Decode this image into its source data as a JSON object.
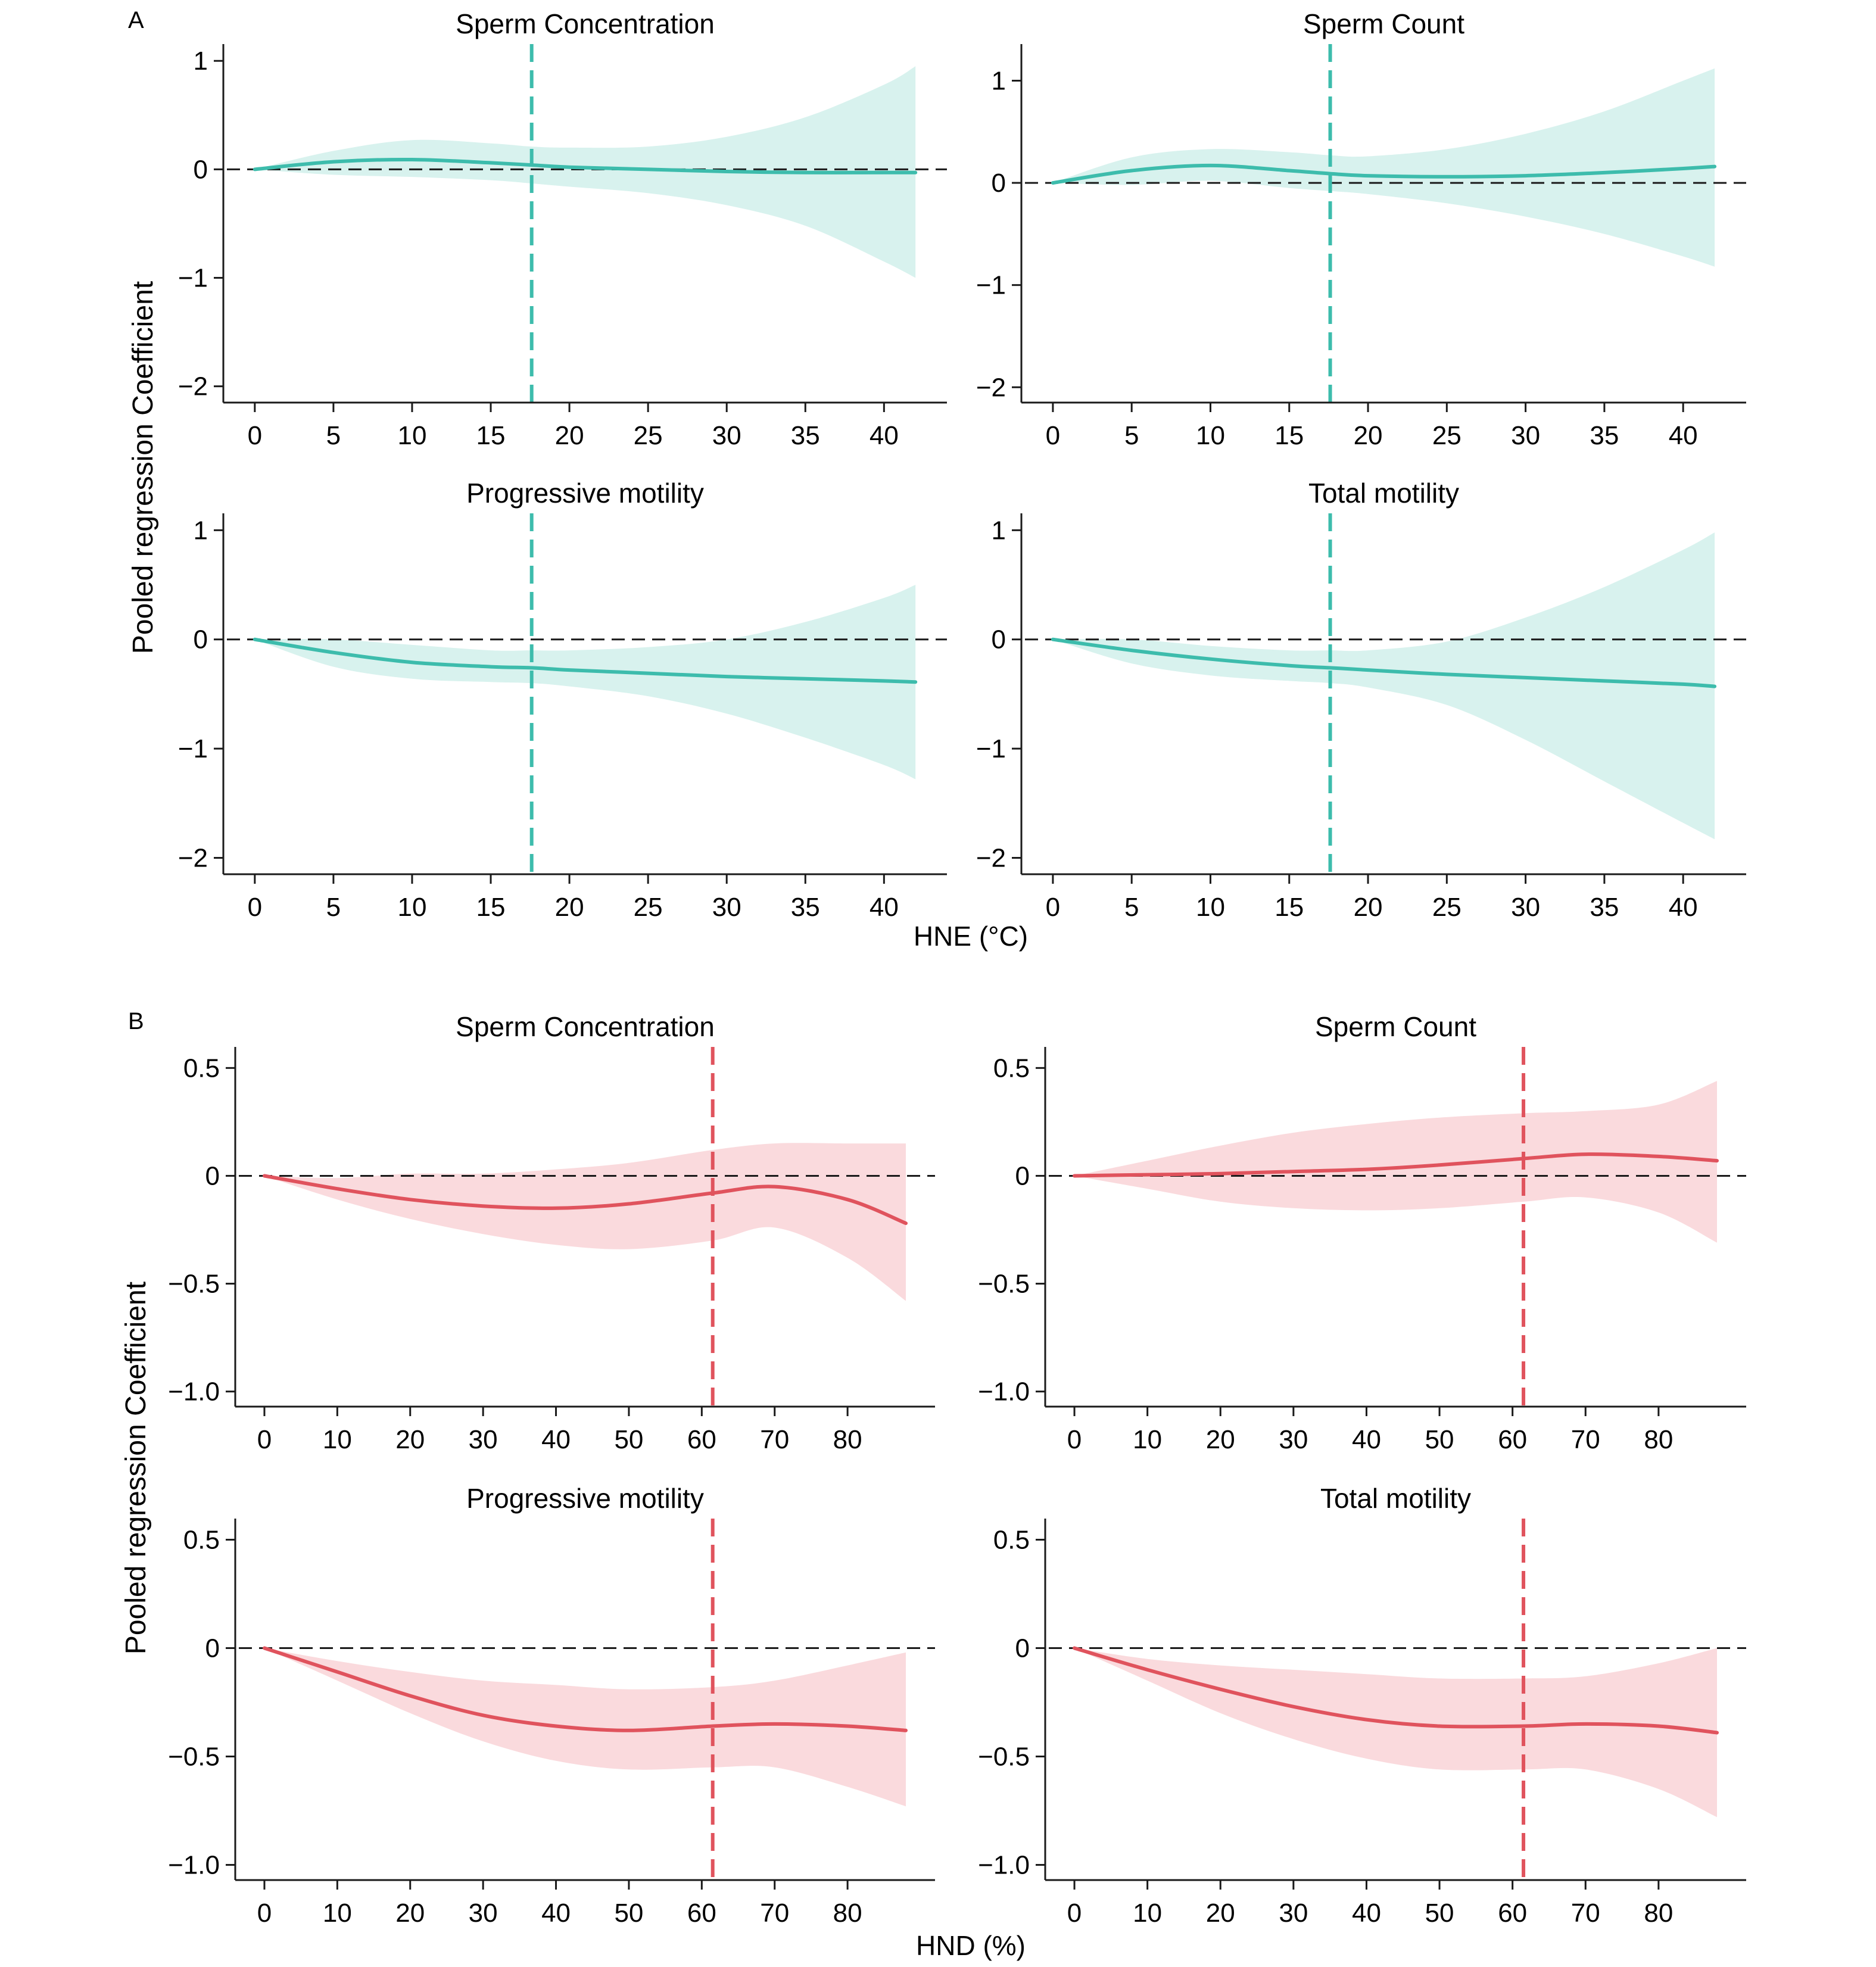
{
  "figure": {
    "panel_a_label": "A",
    "panel_b_label": "B",
    "ylabel": "Pooled regression Coefficient",
    "xlabel_a": "HNE (°C)",
    "xlabel_b": "HND (%)",
    "colors": {
      "a_line": "#3dbcac",
      "a_band": "#d8f2ee",
      "b_line": "#e0535d",
      "b_band": "#fadadd",
      "ref_line": "#1a1a1a"
    }
  },
  "chart_data": [
    {
      "panel": "A",
      "type": "line",
      "title": "Sperm Concentration",
      "xlim": [
        -2,
        44
      ],
      "ylim": [
        -2.15,
        1.1
      ],
      "xticks": [
        0,
        5,
        10,
        15,
        20,
        25,
        30,
        35,
        40
      ],
      "yticks": [
        1,
        0,
        -1,
        -2
      ],
      "ytick_labels": [
        "1",
        "0",
        "−1",
        "−2"
      ],
      "threshold_x": 17.6,
      "x": [
        0,
        5,
        10,
        15,
        17.6,
        20,
        25,
        30,
        35,
        40,
        42
      ],
      "y": [
        0,
        0.07,
        0.09,
        0.06,
        0.04,
        0.02,
        0.0,
        -0.02,
        -0.03,
        -0.03,
        -0.03
      ],
      "lower": [
        0,
        -0.05,
        -0.07,
        -0.1,
        -0.13,
        -0.16,
        -0.22,
        -0.33,
        -0.52,
        -0.85,
        -1.0
      ],
      "upper": [
        0,
        0.17,
        0.27,
        0.24,
        0.21,
        0.2,
        0.21,
        0.3,
        0.48,
        0.78,
        0.95
      ]
    },
    {
      "panel": "A",
      "type": "line",
      "title": "Sperm Count",
      "xlim": [
        -2,
        44
      ],
      "ylim": [
        -2.15,
        1.3
      ],
      "xticks": [
        0,
        5,
        10,
        15,
        20,
        25,
        30,
        35,
        40
      ],
      "yticks": [
        1,
        0,
        -1,
        -2
      ],
      "ytick_labels": [
        "1",
        "0",
        "−1",
        "−2"
      ],
      "threshold_x": 17.6,
      "x": [
        0,
        5,
        10,
        15,
        17.6,
        20,
        25,
        30,
        35,
        40,
        42
      ],
      "y": [
        0,
        0.12,
        0.17,
        0.12,
        0.09,
        0.07,
        0.06,
        0.07,
        0.1,
        0.14,
        0.16
      ],
      "lower": [
        0,
        -0.02,
        0.02,
        -0.05,
        -0.08,
        -0.11,
        -0.2,
        -0.33,
        -0.5,
        -0.72,
        -0.82
      ],
      "upper": [
        0,
        0.25,
        0.33,
        0.3,
        0.27,
        0.26,
        0.33,
        0.48,
        0.7,
        1.0,
        1.12
      ]
    },
    {
      "panel": "A",
      "type": "line",
      "title": "Progressive motility",
      "xlim": [
        -2,
        44
      ],
      "ylim": [
        -2.15,
        1.1
      ],
      "xticks": [
        0,
        5,
        10,
        15,
        20,
        25,
        30,
        35,
        40
      ],
      "yticks": [
        1,
        0,
        -1,
        -2
      ],
      "ytick_labels": [
        "1",
        "0",
        "−1",
        "−2"
      ],
      "threshold_x": 17.6,
      "x": [
        0,
        5,
        10,
        15,
        17.6,
        20,
        25,
        30,
        35,
        40,
        42
      ],
      "y": [
        0,
        -0.12,
        -0.21,
        -0.25,
        -0.26,
        -0.28,
        -0.31,
        -0.34,
        -0.36,
        -0.38,
        -0.39
      ],
      "lower": [
        0,
        -0.25,
        -0.36,
        -0.39,
        -0.4,
        -0.43,
        -0.52,
        -0.68,
        -0.9,
        -1.15,
        -1.28
      ],
      "upper": [
        0,
        0.0,
        -0.05,
        -0.1,
        -0.1,
        -0.1,
        -0.07,
        0.0,
        0.16,
        0.38,
        0.5
      ]
    },
    {
      "panel": "A",
      "type": "line",
      "title": "Total motility",
      "xlim": [
        -2,
        44
      ],
      "ylim": [
        -2.15,
        1.1
      ],
      "xticks": [
        0,
        5,
        10,
        15,
        20,
        25,
        30,
        35,
        40
      ],
      "yticks": [
        1,
        0,
        -1,
        -2
      ],
      "ytick_labels": [
        "1",
        "0",
        "−1",
        "−2"
      ],
      "threshold_x": 17.6,
      "x": [
        0,
        5,
        10,
        15,
        17.6,
        20,
        25,
        30,
        35,
        40,
        42
      ],
      "y": [
        0,
        -0.1,
        -0.18,
        -0.24,
        -0.26,
        -0.28,
        -0.32,
        -0.35,
        -0.38,
        -0.41,
        -0.43
      ],
      "lower": [
        0,
        -0.22,
        -0.33,
        -0.38,
        -0.4,
        -0.44,
        -0.6,
        -0.92,
        -1.3,
        -1.68,
        -1.83
      ],
      "upper": [
        0,
        0.0,
        -0.06,
        -0.1,
        -0.1,
        -0.1,
        -0.02,
        0.2,
        0.48,
        0.82,
        0.98
      ]
    },
    {
      "panel": "B",
      "type": "line",
      "title": "Sperm Concentration",
      "xlim": [
        -4,
        92
      ],
      "ylim": [
        -1.07,
        0.57
      ],
      "xticks": [
        0,
        10,
        20,
        30,
        40,
        50,
        60,
        70,
        80
      ],
      "yticks": [
        0.5,
        0,
        -0.5,
        -1.0
      ],
      "ytick_labels": [
        "0.5",
        "0",
        "−0.5",
        "−1.0"
      ],
      "threshold_x": 61.5,
      "x": [
        0,
        10,
        20,
        30,
        40,
        50,
        61.5,
        70,
        80,
        88
      ],
      "y": [
        0,
        -0.06,
        -0.11,
        -0.14,
        -0.15,
        -0.13,
        -0.08,
        -0.05,
        -0.11,
        -0.22
      ],
      "lower": [
        0,
        -0.11,
        -0.2,
        -0.27,
        -0.32,
        -0.34,
        -0.3,
        -0.24,
        -0.38,
        -0.58
      ],
      "upper": [
        0,
        -0.01,
        0.01,
        0.01,
        0.03,
        0.06,
        0.12,
        0.15,
        0.15,
        0.15
      ]
    },
    {
      "panel": "B",
      "type": "line",
      "title": "Sperm Count",
      "xlim": [
        -4,
        92
      ],
      "ylim": [
        -1.07,
        0.57
      ],
      "xticks": [
        0,
        10,
        20,
        30,
        40,
        50,
        60,
        70,
        80
      ],
      "yticks": [
        0.5,
        0,
        -0.5,
        -1.0
      ],
      "ytick_labels": [
        "0.5",
        "0",
        "−0.5",
        "−1.0"
      ],
      "threshold_x": 61.5,
      "x": [
        0,
        10,
        20,
        30,
        40,
        50,
        61.5,
        70,
        80,
        88
      ],
      "y": [
        0,
        0.005,
        0.01,
        0.02,
        0.03,
        0.05,
        0.08,
        0.1,
        0.09,
        0.07
      ],
      "lower": [
        0,
        -0.06,
        -0.12,
        -0.15,
        -0.16,
        -0.15,
        -0.12,
        -0.1,
        -0.17,
        -0.31
      ],
      "upper": [
        0,
        0.07,
        0.14,
        0.2,
        0.24,
        0.27,
        0.29,
        0.3,
        0.33,
        0.44
      ]
    },
    {
      "panel": "B",
      "type": "line",
      "title": "Progressive motility",
      "xlim": [
        -4,
        92
      ],
      "ylim": [
        -1.07,
        0.57
      ],
      "xticks": [
        0,
        10,
        20,
        30,
        40,
        50,
        60,
        70,
        80
      ],
      "yticks": [
        0.5,
        0,
        -0.5,
        -1.0
      ],
      "ytick_labels": [
        "0.5",
        "0",
        "−0.5",
        "−1.0"
      ],
      "threshold_x": 61.5,
      "x": [
        0,
        10,
        20,
        30,
        40,
        50,
        61.5,
        70,
        80,
        88
      ],
      "y": [
        0,
        -0.11,
        -0.22,
        -0.31,
        -0.36,
        -0.38,
        -0.36,
        -0.35,
        -0.36,
        -0.38
      ],
      "lower": [
        0,
        -0.15,
        -0.3,
        -0.43,
        -0.52,
        -0.56,
        -0.55,
        -0.55,
        -0.64,
        -0.73
      ],
      "upper": [
        0,
        -0.06,
        -0.11,
        -0.15,
        -0.17,
        -0.19,
        -0.18,
        -0.15,
        -0.08,
        -0.02
      ]
    },
    {
      "panel": "B",
      "type": "line",
      "title": "Total motility",
      "xlim": [
        -4,
        92
      ],
      "ylim": [
        -1.07,
        0.57
      ],
      "xticks": [
        0,
        10,
        20,
        30,
        40,
        50,
        60,
        70,
        80
      ],
      "yticks": [
        0.5,
        0,
        -0.5,
        -1.0
      ],
      "ytick_labels": [
        "0.5",
        "0",
        "−0.5",
        "−1.0"
      ],
      "threshold_x": 61.5,
      "x": [
        0,
        10,
        20,
        30,
        40,
        50,
        61.5,
        70,
        80,
        88
      ],
      "y": [
        0,
        -0.1,
        -0.19,
        -0.27,
        -0.33,
        -0.36,
        -0.36,
        -0.35,
        -0.36,
        -0.39
      ],
      "lower": [
        0,
        -0.15,
        -0.3,
        -0.42,
        -0.51,
        -0.56,
        -0.56,
        -0.56,
        -0.65,
        -0.78
      ],
      "upper": [
        0,
        -0.05,
        -0.08,
        -0.1,
        -0.12,
        -0.14,
        -0.14,
        -0.13,
        -0.07,
        0.0
      ]
    }
  ]
}
